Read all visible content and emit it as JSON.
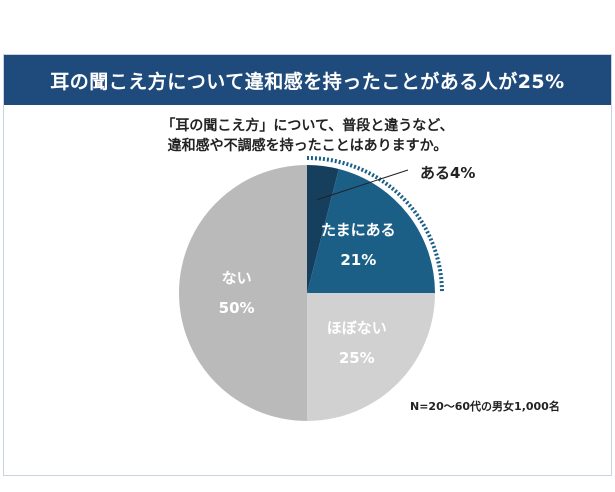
{
  "title": "耳の聞こえ方について違和感を持ったことがある人が25%",
  "question_lines": [
    "「耳の聞こえ方」について、普段と違うなど、",
    "違和感や不調感を持ったことはありますか。"
  ],
  "note": "N=20〜60代の男女1,000名",
  "chart_data": {
    "type": "pie",
    "start": "top",
    "direction": "clockwise",
    "slices": [
      {
        "label": "ある",
        "value": 4,
        "value_label": "4%",
        "color": "#163f5e",
        "text_color": "#222222"
      },
      {
        "label": "たまにある",
        "value": 21,
        "value_label": "21%",
        "color": "#1b5f87",
        "text_color": "#ffffff"
      },
      {
        "label": "ほぼない",
        "value": 25,
        "value_label": "25%",
        "color": "#d1d1d1",
        "text_color": "#ffffff"
      },
      {
        "label": "ない",
        "value": 50,
        "value_label": "50%",
        "color": "#bababa",
        "text_color": "#ffffff"
      }
    ],
    "highlight": {
      "label": "ある + たまにある",
      "value": 25,
      "style": "dotted-arc",
      "color": "#1b5f87"
    }
  }
}
